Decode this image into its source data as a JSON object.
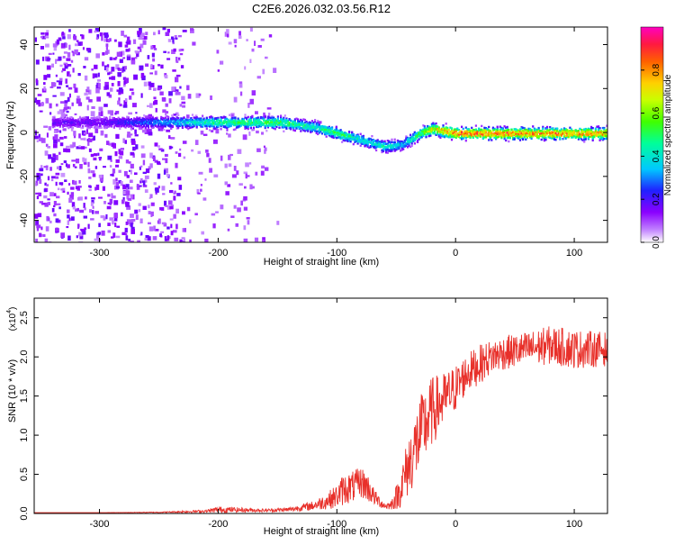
{
  "figure_title": "C2E6.2026.032.03.56.R12",
  "colors": {
    "snr_line": "#e8302a",
    "spectrum_cold": "#7a1ee0",
    "colorbar": [
      "#ffffff",
      "#8a00ff",
      "#2020ff",
      "#00c8ff",
      "#00ff60",
      "#c8ff00",
      "#ffd000",
      "#ff6000",
      "#ff1a40",
      "#ff00c0"
    ]
  },
  "chart_data": [
    {
      "type": "heatmap",
      "title": "",
      "xlabel": "Height of straight line (km)",
      "ylabel": "Frequency (Hz)",
      "xlim": [
        -355,
        128
      ],
      "ylim": [
        -50,
        48
      ],
      "xticks": [
        -300,
        -200,
        -100,
        0,
        100
      ],
      "yticks": [
        -40,
        -20,
        0,
        20,
        40
      ],
      "grid": false,
      "colorbar": {
        "label": "Normalized spectral amplitude",
        "range": [
          0,
          1
        ],
        "ticks": [
          "0.0",
          "0.2",
          "0.4",
          "0.6",
          "0.8"
        ]
      },
      "ridge": {
        "x": [
          -300,
          -250,
          -200,
          -150,
          -120,
          -100,
          -80,
          -60,
          -45,
          -30,
          -20,
          0,
          50,
          100,
          125
        ],
        "frequency": [
          5,
          5,
          5,
          5,
          3,
          0,
          -3,
          -6,
          -5,
          0,
          2,
          0,
          0,
          0,
          0
        ],
        "peak_amplitude": [
          0.2,
          0.35,
          0.55,
          0.6,
          0.5,
          0.6,
          0.45,
          0.5,
          0.4,
          0.6,
          0.8,
          0.95,
          0.95,
          0.9,
          0.9
        ]
      },
      "noise_region_x": [
        -355,
        -150
      ]
    },
    {
      "type": "line",
      "title": "",
      "xlabel": "Height of straight line (km)",
      "ylabel": "SNR (10 * v/v)",
      "y_multiplier": "(x10",
      "y_multiplier_exp": "4",
      "xlim": [
        -355,
        128
      ],
      "ylim": [
        0,
        2.75
      ],
      "xticks": [
        -300,
        -200,
        -100,
        0,
        100
      ],
      "yticks": [
        "0.0",
        "0.5",
        "1.0",
        "1.5",
        "2.0",
        "2.5"
      ],
      "grid": false,
      "series": [
        {
          "name": "",
          "x": [
            -355,
            -300,
            -250,
            -210,
            -200,
            -160,
            -140,
            -120,
            -110,
            -100,
            -95,
            -85,
            -80,
            -75,
            -68,
            -60,
            -55,
            -48,
            -40,
            -30,
            -20,
            -10,
            0,
            10,
            20,
            30,
            40,
            60,
            80,
            100,
            128
          ],
          "y": [
            0.01,
            0.01,
            0.015,
            0.03,
            0.05,
            0.04,
            0.05,
            0.1,
            0.15,
            0.22,
            0.3,
            0.35,
            0.4,
            0.35,
            0.2,
            0.1,
            0.1,
            0.25,
            0.6,
            1.0,
            1.3,
            1.45,
            1.6,
            1.8,
            1.9,
            2.0,
            2.05,
            2.1,
            2.15,
            2.1,
            2.1
          ],
          "amplitude": [
            0.0,
            0.0,
            0.005,
            0.02,
            0.04,
            0.02,
            0.03,
            0.06,
            0.1,
            0.15,
            0.2,
            0.2,
            0.2,
            0.2,
            0.1,
            0.05,
            0.05,
            0.2,
            0.4,
            0.5,
            0.45,
            0.35,
            0.3,
            0.25,
            0.25,
            0.22,
            0.22,
            0.22,
            0.25,
            0.25,
            0.22
          ]
        }
      ]
    }
  ]
}
